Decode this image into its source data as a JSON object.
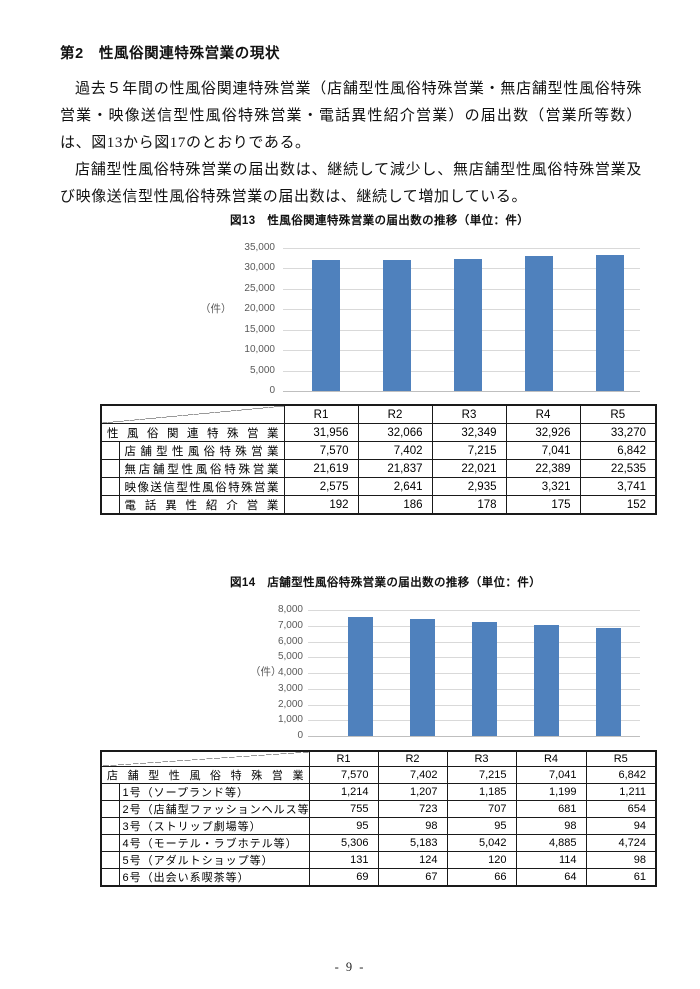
{
  "page": {
    "heading": "第2　性風俗関連特殊営業の現状",
    "paragraphs": [
      "過去５年間の性風俗関連特殊営業（店舗型性風俗特殊営業・無店舗型性風俗特殊営業・映像送信型性風俗特殊営業・電話異性紹介営業）の届出数（営業所等数）は、図13から図17のとおりである。",
      "店舗型性風俗特殊営業の届出数は、継続して減少し、無店舗型性風俗特殊営業及び映像送信型性風俗特殊営業の届出数は、継続して増加している。"
    ],
    "page_number": "- 9 -"
  },
  "figures": {
    "fig13": {
      "title": "図13　性風俗関連特殊営業の届出数の推移（単位：件）",
      "table": {
        "col_headers": [
          "R1",
          "R2",
          "R3",
          "R4",
          "R5"
        ],
        "rows": [
          {
            "label": "性風俗関連特殊営業",
            "indent": false,
            "justify": true,
            "values": [
              "31,956",
              "32,066",
              "32,349",
              "32,926",
              "33,270"
            ]
          },
          {
            "label": "店舗型性風俗特殊営業",
            "indent": true,
            "justify": true,
            "values": [
              "7,570",
              "7,402",
              "7,215",
              "7,041",
              "6,842"
            ]
          },
          {
            "label": "無店舗型性風俗特殊営業",
            "indent": true,
            "justify": true,
            "values": [
              "21,619",
              "21,837",
              "22,021",
              "22,389",
              "22,535"
            ]
          },
          {
            "label": "映像送信型性風俗特殊営業",
            "indent": true,
            "justify": true,
            "values": [
              "2,575",
              "2,641",
              "2,935",
              "3,321",
              "3,741"
            ]
          },
          {
            "label": "電話異性紹介営業",
            "indent": true,
            "justify": true,
            "values": [
              "192",
              "186",
              "178",
              "175",
              "152"
            ]
          }
        ]
      }
    },
    "fig14": {
      "title": "図14　店舗型性風俗特殊営業の届出数の推移（単位：件）",
      "table": {
        "col_headers": [
          "R1",
          "R2",
          "R3",
          "R4",
          "R5"
        ],
        "rows": [
          {
            "label": "店舗型性風俗特殊営業",
            "indent": false,
            "justify": true,
            "values": [
              "7,570",
              "7,402",
              "7,215",
              "7,041",
              "6,842"
            ]
          },
          {
            "label": "1号（ソープランド等）",
            "indent": true,
            "justify": false,
            "values": [
              "1,214",
              "1,207",
              "1,185",
              "1,199",
              "1,211"
            ]
          },
          {
            "label": "2号（店舗型ファッションヘルス等）",
            "indent": true,
            "justify": false,
            "values": [
              "755",
              "723",
              "707",
              "681",
              "654"
            ]
          },
          {
            "label": "3号（ストリップ劇場等）",
            "indent": true,
            "justify": false,
            "values": [
              "95",
              "98",
              "95",
              "98",
              "94"
            ]
          },
          {
            "label": "4号（モーテル・ラブホテル等）",
            "indent": true,
            "justify": false,
            "values": [
              "5,306",
              "5,183",
              "5,042",
              "4,885",
              "4,724"
            ]
          },
          {
            "label": "5号（アダルトショップ等）",
            "indent": true,
            "justify": false,
            "values": [
              "131",
              "124",
              "120",
              "114",
              "98"
            ]
          },
          {
            "label": "6号（出会い系喫茶等）",
            "indent": true,
            "justify": false,
            "values": [
              "69",
              "67",
              "66",
              "64",
              "61"
            ]
          }
        ]
      }
    }
  },
  "chart_data": [
    {
      "id": "fig13",
      "type": "bar",
      "title": "図13　性風俗関連特殊営業の届出数の推移（単位：件）",
      "categories": [
        "R1",
        "R2",
        "R3",
        "R4",
        "R5"
      ],
      "values": [
        31956,
        32066,
        32349,
        32926,
        33270
      ],
      "ylabel": "（件）",
      "ylim": [
        0,
        35000
      ],
      "ytick_step": 5000,
      "legend": "none",
      "grid": "horizontal",
      "bar_color": "#4f81bd",
      "gridline_color": "#d9d9d9",
      "axis_line_color": "#bfbfbf",
      "tick_label_color": "#595959"
    },
    {
      "id": "fig14",
      "type": "bar",
      "title": "図14　店舗型性風俗特殊営業の届出数の推移（単位：件）",
      "categories": [
        "R1",
        "R2",
        "R3",
        "R4",
        "R5"
      ],
      "values": [
        7570,
        7402,
        7215,
        7041,
        6842
      ],
      "ylabel": "（件）",
      "ylim": [
        0,
        8000
      ],
      "ytick_step": 1000,
      "legend": "none",
      "grid": "horizontal",
      "bar_color": "#4f81bd",
      "gridline_color": "#d9d9d9",
      "axis_line_color": "#bfbfbf",
      "tick_label_color": "#595959"
    }
  ]
}
